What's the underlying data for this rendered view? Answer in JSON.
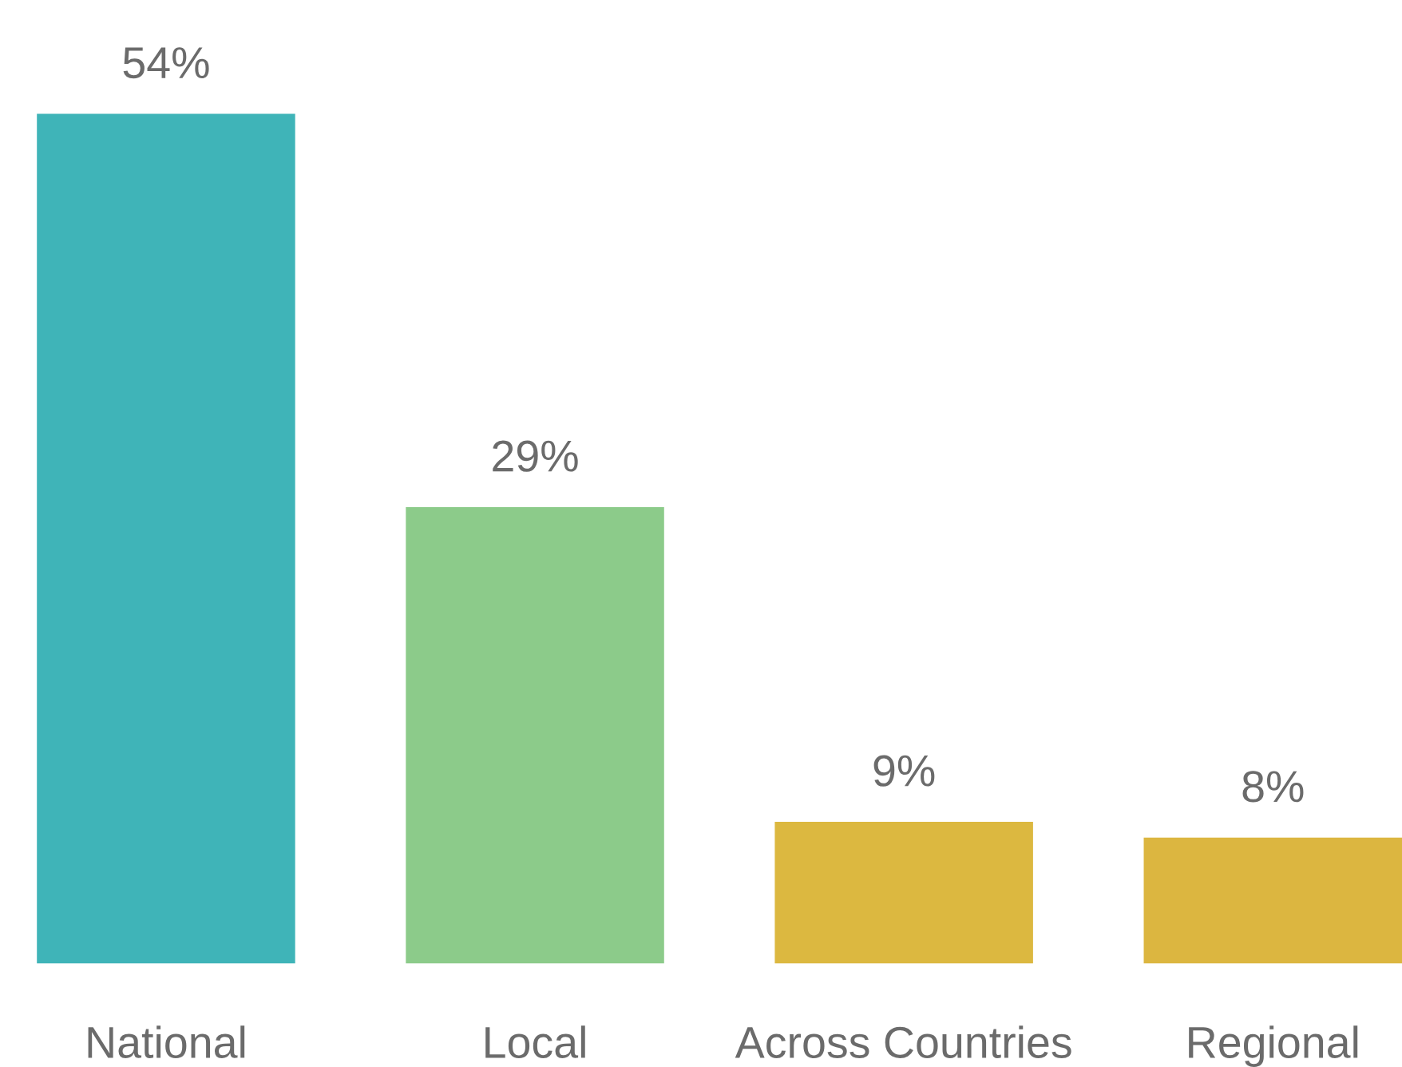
{
  "chart_data": {
    "type": "bar",
    "categories": [
      "National",
      "Local",
      "Across Countries",
      "Regional"
    ],
    "values": [
      54,
      29,
      9,
      8
    ],
    "colors": [
      "#3fb4b8",
      "#8ccb8a",
      "#dcb840",
      "#dcb640"
    ],
    "data_labels": true,
    "value_labels": [
      "54%",
      "29%",
      "9%",
      "8%"
    ],
    "grid": false,
    "legend": false
  }
}
